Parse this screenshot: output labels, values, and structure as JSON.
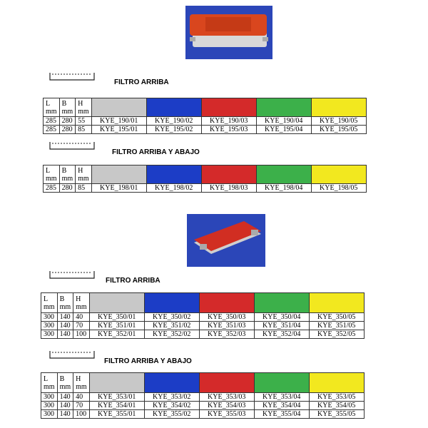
{
  "sections": [
    {
      "tables": [
        {
          "title": "FILTRO ARRIBA",
          "header": [
            [
              "L",
              "mm"
            ],
            [
              "B",
              "mm"
            ],
            [
              "H",
              "mm"
            ]
          ],
          "rows": [
            [
              285,
              280,
              55,
              "KYE_190/01",
              "KYE_190/02",
              "KYE_190/03",
              "KYE_190/04",
              "KYE_190/05"
            ],
            [
              285,
              280,
              85,
              "KYE_195/01",
              "KYE_195/02",
              "KYE_195/03",
              "KYE_195/04",
              "KYE_195/05"
            ]
          ]
        },
        {
          "title": "FILTRO ARRIBA Y ABAJO",
          "header": [
            [
              "L",
              "mm"
            ],
            [
              "B",
              "mm"
            ],
            [
              "H",
              "mm"
            ]
          ],
          "rows": [
            [
              285,
              280,
              85,
              "KYE_198/01",
              "KYE_198/02",
              "KYE_198/03",
              "KYE_198/04",
              "KYE_198/05"
            ]
          ]
        }
      ]
    },
    {
      "tables": [
        {
          "title": "FILTRO ARRIBA",
          "header": [
            [
              "L",
              "mm"
            ],
            [
              "B",
              "mm"
            ],
            [
              "H",
              "mm"
            ]
          ],
          "rows": [
            [
              300,
              140,
              40,
              "KYE_350/01",
              "KYE_350/02",
              "KYE_350/03",
              "KYE_350/04",
              "KYE_350/05"
            ],
            [
              300,
              140,
              70,
              "KYE_351/01",
              "KYE_351/02",
              "KYE_351/03",
              "KYE_351/04",
              "KYE_351/05"
            ],
            [
              300,
              140,
              100,
              "KYE_352/01",
              "KYE_352/02",
              "KYE_352/03",
              "KYE_352/04",
              "KYE_352/05"
            ]
          ]
        },
        {
          "title": "FILTRO ARRIBA Y ABAJO",
          "header": [
            [
              "L",
              "mm"
            ],
            [
              "B",
              "mm"
            ],
            [
              "H",
              "mm"
            ]
          ],
          "rows": [
            [
              300,
              140,
              40,
              "KYE_353/01",
              "KYE_353/02",
              "KYE_353/03",
              "KYE_353/04",
              "KYE_353/05"
            ],
            [
              300,
              140,
              70,
              "KYE_354/01",
              "KYE_354/02",
              "KYE_354/03",
              "KYE_354/04",
              "KYE_354/05"
            ],
            [
              300,
              140,
              100,
              "KYE_355/01",
              "KYE_355/02",
              "KYE_355/03",
              "KYE_355/04",
              "KYE_355/05"
            ]
          ]
        }
      ]
    }
  ]
}
